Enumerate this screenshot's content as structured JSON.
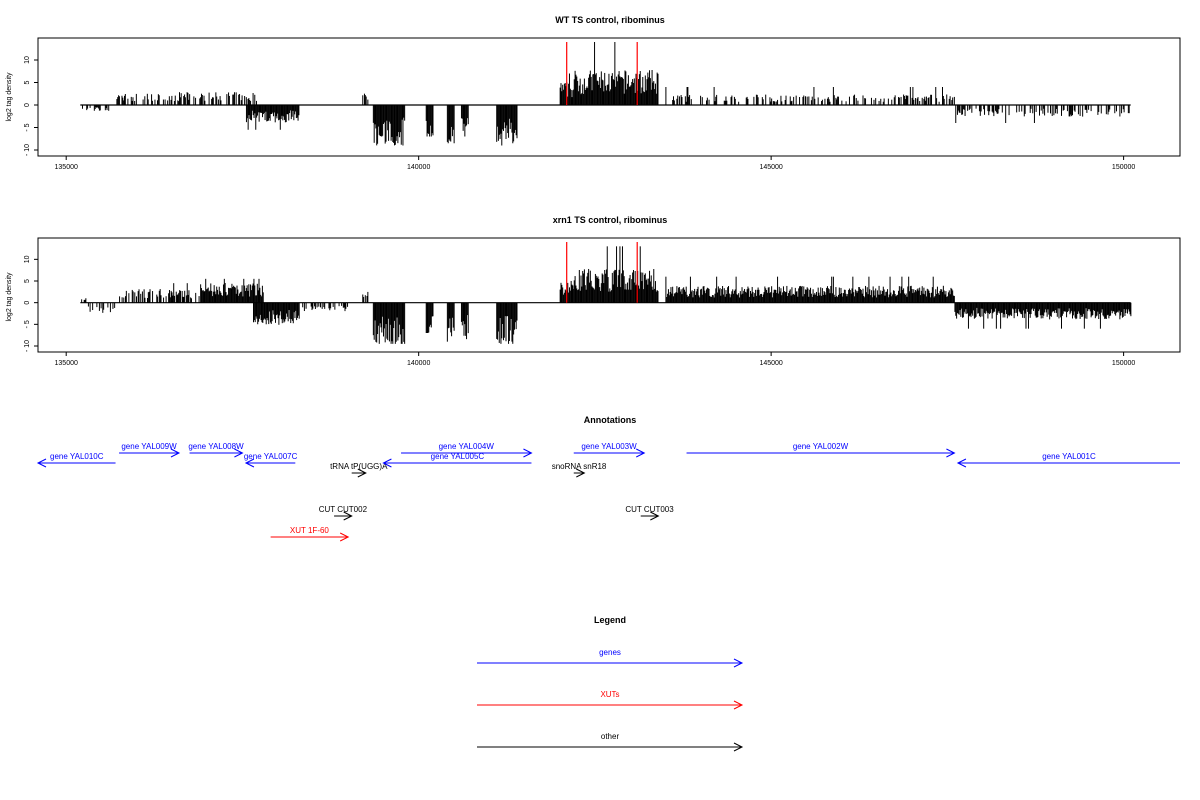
{
  "chart_data": [
    {
      "type": "bar",
      "title": "WT TS control, ribominus",
      "ylabel": "log2 tag density",
      "xlim": [
        134600,
        150800
      ],
      "ylim": [
        -10,
        14
      ],
      "yticks": [
        -10,
        -5,
        0,
        5,
        10
      ],
      "xticks": [
        135000,
        140000,
        145000,
        150000
      ],
      "region": [
        135200,
        150100
      ],
      "markers": [
        142100,
        143100
      ],
      "marker_color": "#ff0000",
      "positive_segments": [
        {
          "x": [
            135700,
            136600
          ],
          "avg": 2,
          "max": 3
        },
        {
          "x": [
            136600,
            137700
          ],
          "avg": 2.2,
          "max": 4.5
        },
        {
          "x": [
            139200,
            139300
          ],
          "avg": 2,
          "max": 3.5
        },
        {
          "x": [
            142000,
            142200
          ],
          "avg": 4,
          "max": 7
        },
        {
          "x": [
            142200,
            143400
          ],
          "avg": 6,
          "max": 14
        },
        {
          "x": [
            143500,
            147600
          ],
          "avg": 1.8,
          "max": 4
        }
      ],
      "negative_segments": [
        {
          "x": [
            135200,
            135600
          ],
          "avg": -1,
          "max": -2.5
        },
        {
          "x": [
            137550,
            138300
          ],
          "avg": -3,
          "max": -5.5
        },
        {
          "x": [
            139350,
            139800
          ],
          "avg": -7,
          "max": -9
        },
        {
          "x": [
            140100,
            140200
          ],
          "avg": -6,
          "max": -7
        },
        {
          "x": [
            140400,
            140500
          ],
          "avg": -7,
          "max": -8.5
        },
        {
          "x": [
            140600,
            140700
          ],
          "avg": -6,
          "max": -7
        },
        {
          "x": [
            141100,
            141400
          ],
          "avg": -7,
          "max": -9
        },
        {
          "x": [
            147600,
            150100
          ],
          "avg": -2,
          "max": -4
        }
      ]
    },
    {
      "type": "bar",
      "title": "xrn1 TS control, ribominus",
      "ylabel": "log2 tag density",
      "xlim": [
        134600,
        150800
      ],
      "ylim": [
        -10,
        14
      ],
      "yticks": [
        -10,
        -5,
        0,
        5,
        10
      ],
      "xticks": [
        135000,
        140000,
        145000,
        150000
      ],
      "region": [
        135200,
        150100
      ],
      "markers": [
        142100,
        143100
      ],
      "marker_color": "#ff0000",
      "positive_segments": [
        {
          "x": [
            135200,
            135300
          ],
          "avg": 1,
          "max": 2
        },
        {
          "x": [
            135750,
            136900
          ],
          "avg": 2.5,
          "max": 4.5
        },
        {
          "x": [
            136900,
            137800
          ],
          "avg": 3.5,
          "max": 5.5
        },
        {
          "x": [
            139200,
            139300
          ],
          "avg": 2,
          "max": 3.5
        },
        {
          "x": [
            142000,
            142200
          ],
          "avg": 4,
          "max": 8
        },
        {
          "x": [
            142200,
            143400
          ],
          "avg": 6,
          "max": 13
        },
        {
          "x": [
            143500,
            147600
          ],
          "avg": 3,
          "max": 6
        }
      ],
      "negative_segments": [
        {
          "x": [
            135200,
            135700
          ],
          "avg": -2,
          "max": -3
        },
        {
          "x": [
            137650,
            138300
          ],
          "avg": -4,
          "max": -6
        },
        {
          "x": [
            138300,
            139000
          ],
          "avg": -1.5,
          "max": -2.5
        },
        {
          "x": [
            139350,
            139800
          ],
          "avg": -8,
          "max": -9.5
        },
        {
          "x": [
            140100,
            140200
          ],
          "avg": -6,
          "max": -7
        },
        {
          "x": [
            140400,
            140500
          ],
          "avg": -7,
          "max": -9
        },
        {
          "x": [
            140600,
            140700
          ],
          "avg": -7,
          "max": -8.5
        },
        {
          "x": [
            141100,
            141400
          ],
          "avg": -7.5,
          "max": -9.5
        },
        {
          "x": [
            147600,
            150100
          ],
          "avg": -3,
          "max": -6
        }
      ]
    }
  ],
  "annotations": {
    "title": "Annotations",
    "xlim": [
      134600,
      150800
    ],
    "features": [
      {
        "label": "gene YAL010C",
        "start": 134600,
        "end": 135700,
        "strand": "-",
        "color": "#0000ff",
        "row": 2
      },
      {
        "label": "gene YAL009W",
        "start": 135750,
        "end": 136600,
        "strand": "+",
        "color": "#0000ff",
        "row": 1
      },
      {
        "label": "gene YAL008W",
        "start": 136750,
        "end": 137500,
        "strand": "+",
        "color": "#0000ff",
        "row": 1
      },
      {
        "label": "gene YAL007C",
        "start": 137550,
        "end": 138250,
        "strand": "-",
        "color": "#0000ff",
        "row": 2
      },
      {
        "label": "tRNA tP(UGG)A",
        "start": 139050,
        "end": 139250,
        "strand": "+",
        "color": "#000000",
        "row": 3
      },
      {
        "label": "gene YAL005C",
        "start": 139500,
        "end": 141600,
        "strand": "-",
        "color": "#0000ff",
        "row": 2
      },
      {
        "label": "gene YAL004W",
        "start": 139750,
        "end": 141600,
        "strand": "+",
        "color": "#0000ff",
        "row": 1
      },
      {
        "label": "gene YAL003W",
        "start": 142200,
        "end": 143200,
        "strand": "+",
        "color": "#0000ff",
        "row": 1
      },
      {
        "label": "snoRNA snR18",
        "start": 142200,
        "end": 142350,
        "strand": "+",
        "color": "#000000",
        "row": 3
      },
      {
        "label": "gene YAL002W",
        "start": 143800,
        "end": 147600,
        "strand": "+",
        "color": "#0000ff",
        "row": 1
      },
      {
        "label": "gene YAL001C",
        "start": 147650,
        "end": 150800,
        "strand": "-",
        "color": "#0000ff",
        "row": 2
      },
      {
        "label": "CUT CUT002",
        "start": 138800,
        "end": 139050,
        "strand": "+",
        "color": "#000000",
        "row": 4
      },
      {
        "label": "CUT CUT003",
        "start": 143150,
        "end": 143400,
        "strand": "+",
        "color": "#000000",
        "row": 4
      },
      {
        "label": "XUT 1F-60",
        "start": 137900,
        "end": 139000,
        "strand": "+",
        "color": "#ff0000",
        "row": 5
      }
    ]
  },
  "legend": {
    "title": "Legend",
    "items": [
      {
        "label": "genes",
        "color": "#0000ff"
      },
      {
        "label": "XUTs",
        "color": "#ff0000"
      },
      {
        "label": "other",
        "color": "#000000"
      }
    ]
  }
}
